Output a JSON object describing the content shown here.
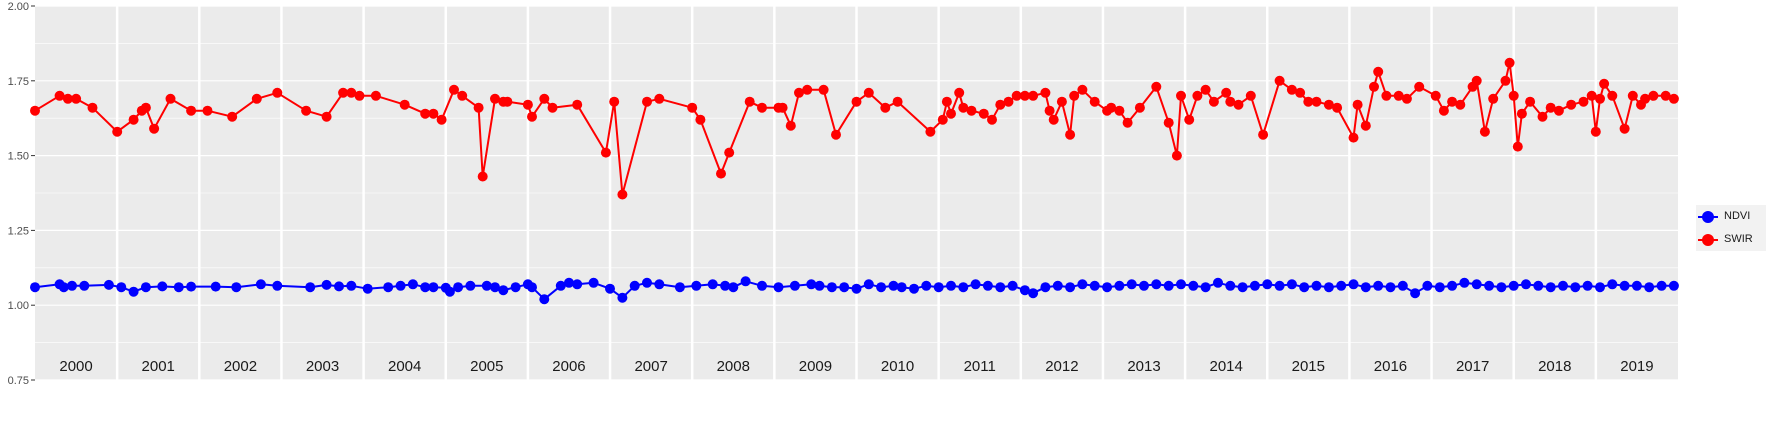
{
  "chart_data": {
    "type": "line",
    "title": "",
    "xlabel": "",
    "ylabel": "",
    "ylim": [
      0.75,
      2.0
    ],
    "y_ticks": [
      "0.75",
      "1.00",
      "1.25",
      "1.50",
      "1.75",
      "2.00"
    ],
    "y_tick_values": [
      0.75,
      1.0,
      1.25,
      1.5,
      1.75,
      2.0
    ],
    "x_range": [
      2000.0,
      2020.0
    ],
    "years": [
      "2000",
      "2001",
      "2002",
      "2003",
      "2004",
      "2005",
      "2006",
      "2007",
      "2008",
      "2009",
      "2010",
      "2011",
      "2012",
      "2013",
      "2014",
      "2015",
      "2016",
      "2017",
      "2018",
      "2019"
    ],
    "grid": true,
    "legend_position": "right",
    "series": [
      {
        "name": "SWIR",
        "color": "#ff0000",
        "points": [
          [
            2000.0,
            1.65
          ],
          [
            2000.3,
            1.7
          ],
          [
            2000.4,
            1.69
          ],
          [
            2000.5,
            1.69
          ],
          [
            2000.7,
            1.66
          ],
          [
            2001.0,
            1.58
          ],
          [
            2001.2,
            1.62
          ],
          [
            2001.3,
            1.65
          ],
          [
            2001.35,
            1.66
          ],
          [
            2001.45,
            1.59
          ],
          [
            2001.65,
            1.69
          ],
          [
            2001.9,
            1.65
          ],
          [
            2002.1,
            1.65
          ],
          [
            2002.4,
            1.63
          ],
          [
            2002.7,
            1.69
          ],
          [
            2002.95,
            1.71
          ],
          [
            2003.3,
            1.65
          ],
          [
            2003.55,
            1.63
          ],
          [
            2003.75,
            1.71
          ],
          [
            2003.85,
            1.71
          ],
          [
            2003.95,
            1.7
          ],
          [
            2004.15,
            1.7
          ],
          [
            2004.5,
            1.67
          ],
          [
            2004.75,
            1.64
          ],
          [
            2004.85,
            1.64
          ],
          [
            2004.95,
            1.62
          ],
          [
            2005.1,
            1.72
          ],
          [
            2005.2,
            1.7
          ],
          [
            2005.4,
            1.66
          ],
          [
            2005.45,
            1.43
          ],
          [
            2005.6,
            1.69
          ],
          [
            2005.7,
            1.68
          ],
          [
            2005.75,
            1.68
          ],
          [
            2006.0,
            1.67
          ],
          [
            2006.05,
            1.63
          ],
          [
            2006.2,
            1.69
          ],
          [
            2006.3,
            1.66
          ],
          [
            2006.6,
            1.67
          ],
          [
            2006.95,
            1.51
          ],
          [
            2007.05,
            1.68
          ],
          [
            2007.15,
            1.37
          ],
          [
            2007.45,
            1.68
          ],
          [
            2007.6,
            1.69
          ],
          [
            2008.0,
            1.66
          ],
          [
            2008.1,
            1.62
          ],
          [
            2008.35,
            1.44
          ],
          [
            2008.45,
            1.51
          ],
          [
            2008.7,
            1.68
          ],
          [
            2008.85,
            1.66
          ],
          [
            2009.05,
            1.66
          ],
          [
            2009.1,
            1.66
          ],
          [
            2009.2,
            1.6
          ],
          [
            2009.3,
            1.71
          ],
          [
            2009.4,
            1.72
          ],
          [
            2009.6,
            1.72
          ],
          [
            2009.75,
            1.57
          ],
          [
            2010.0,
            1.68
          ],
          [
            2010.15,
            1.71
          ],
          [
            2010.35,
            1.66
          ],
          [
            2010.5,
            1.68
          ],
          [
            2010.9,
            1.58
          ],
          [
            2011.05,
            1.62
          ],
          [
            2011.1,
            1.68
          ],
          [
            2011.15,
            1.64
          ],
          [
            2011.25,
            1.71
          ],
          [
            2011.3,
            1.66
          ],
          [
            2011.4,
            1.65
          ],
          [
            2011.55,
            1.64
          ],
          [
            2011.65,
            1.62
          ],
          [
            2011.75,
            1.67
          ],
          [
            2011.85,
            1.68
          ],
          [
            2011.95,
            1.7
          ],
          [
            2012.05,
            1.7
          ],
          [
            2012.15,
            1.7
          ],
          [
            2012.3,
            1.71
          ],
          [
            2012.35,
            1.65
          ],
          [
            2012.4,
            1.62
          ],
          [
            2012.5,
            1.68
          ],
          [
            2012.6,
            1.57
          ],
          [
            2012.65,
            1.7
          ],
          [
            2012.75,
            1.72
          ],
          [
            2012.9,
            1.68
          ],
          [
            2013.05,
            1.65
          ],
          [
            2013.1,
            1.66
          ],
          [
            2013.2,
            1.65
          ],
          [
            2013.3,
            1.61
          ],
          [
            2013.45,
            1.66
          ],
          [
            2013.65,
            1.73
          ],
          [
            2013.8,
            1.61
          ],
          [
            2013.9,
            1.5
          ],
          [
            2013.95,
            1.7
          ],
          [
            2014.05,
            1.62
          ],
          [
            2014.15,
            1.7
          ],
          [
            2014.25,
            1.72
          ],
          [
            2014.35,
            1.68
          ],
          [
            2014.5,
            1.71
          ],
          [
            2014.55,
            1.68
          ],
          [
            2014.65,
            1.67
          ],
          [
            2014.8,
            1.7
          ],
          [
            2014.95,
            1.57
          ],
          [
            2015.15,
            1.75
          ],
          [
            2015.3,
            1.72
          ],
          [
            2015.4,
            1.71
          ],
          [
            2015.5,
            1.68
          ],
          [
            2015.6,
            1.68
          ],
          [
            2015.75,
            1.67
          ],
          [
            2015.85,
            1.66
          ],
          [
            2016.05,
            1.56
          ],
          [
            2016.1,
            1.67
          ],
          [
            2016.2,
            1.6
          ],
          [
            2016.3,
            1.73
          ],
          [
            2016.35,
            1.78
          ],
          [
            2016.45,
            1.7
          ],
          [
            2016.6,
            1.7
          ],
          [
            2016.7,
            1.69
          ],
          [
            2016.85,
            1.73
          ],
          [
            2017.05,
            1.7
          ],
          [
            2017.15,
            1.65
          ],
          [
            2017.25,
            1.68
          ],
          [
            2017.35,
            1.67
          ],
          [
            2017.5,
            1.73
          ],
          [
            2017.55,
            1.75
          ],
          [
            2017.65,
            1.58
          ],
          [
            2017.75,
            1.69
          ],
          [
            2017.9,
            1.75
          ],
          [
            2017.95,
            1.81
          ],
          [
            2018.0,
            1.7
          ],
          [
            2018.05,
            1.53
          ],
          [
            2018.1,
            1.64
          ],
          [
            2018.2,
            1.68
          ],
          [
            2018.35,
            1.63
          ],
          [
            2018.45,
            1.66
          ],
          [
            2018.55,
            1.65
          ],
          [
            2018.7,
            1.67
          ],
          [
            2018.85,
            1.68
          ],
          [
            2018.95,
            1.7
          ],
          [
            2019.0,
            1.58
          ],
          [
            2019.05,
            1.69
          ],
          [
            2019.1,
            1.74
          ],
          [
            2019.2,
            1.7
          ],
          [
            2019.35,
            1.59
          ],
          [
            2019.45,
            1.7
          ],
          [
            2019.55,
            1.67
          ],
          [
            2019.6,
            1.69
          ],
          [
            2019.7,
            1.7
          ],
          [
            2019.85,
            1.7
          ],
          [
            2019.95,
            1.69
          ]
        ]
      },
      {
        "name": "NDVI",
        "color": "#0000ff",
        "points": [
          [
            2000.0,
            1.06
          ],
          [
            2000.3,
            1.07
          ],
          [
            2000.35,
            1.06
          ],
          [
            2000.45,
            1.065
          ],
          [
            2000.6,
            1.065
          ],
          [
            2000.9,
            1.068
          ],
          [
            2001.05,
            1.06
          ],
          [
            2001.2,
            1.045
          ],
          [
            2001.35,
            1.06
          ],
          [
            2001.55,
            1.063
          ],
          [
            2001.75,
            1.06
          ],
          [
            2001.9,
            1.062
          ],
          [
            2002.2,
            1.062
          ],
          [
            2002.45,
            1.06
          ],
          [
            2002.75,
            1.07
          ],
          [
            2002.95,
            1.065
          ],
          [
            2003.35,
            1.06
          ],
          [
            2003.55,
            1.068
          ],
          [
            2003.7,
            1.063
          ],
          [
            2003.85,
            1.065
          ],
          [
            2004.05,
            1.055
          ],
          [
            2004.3,
            1.06
          ],
          [
            2004.45,
            1.065
          ],
          [
            2004.6,
            1.07
          ],
          [
            2004.75,
            1.06
          ],
          [
            2004.85,
            1.06
          ],
          [
            2005.0,
            1.058
          ],
          [
            2005.05,
            1.045
          ],
          [
            2005.15,
            1.06
          ],
          [
            2005.3,
            1.065
          ],
          [
            2005.5,
            1.065
          ],
          [
            2005.6,
            1.06
          ],
          [
            2005.7,
            1.05
          ],
          [
            2005.85,
            1.06
          ],
          [
            2006.0,
            1.07
          ],
          [
            2006.05,
            1.06
          ],
          [
            2006.2,
            1.02
          ],
          [
            2006.4,
            1.065
          ],
          [
            2006.5,
            1.075
          ],
          [
            2006.6,
            1.07
          ],
          [
            2006.8,
            1.075
          ],
          [
            2007.0,
            1.055
          ],
          [
            2007.15,
            1.025
          ],
          [
            2007.3,
            1.065
          ],
          [
            2007.45,
            1.075
          ],
          [
            2007.6,
            1.07
          ],
          [
            2007.85,
            1.06
          ],
          [
            2008.05,
            1.065
          ],
          [
            2008.25,
            1.07
          ],
          [
            2008.4,
            1.065
          ],
          [
            2008.5,
            1.06
          ],
          [
            2008.65,
            1.08
          ],
          [
            2008.85,
            1.065
          ],
          [
            2009.05,
            1.06
          ],
          [
            2009.25,
            1.065
          ],
          [
            2009.45,
            1.07
          ],
          [
            2009.55,
            1.065
          ],
          [
            2009.7,
            1.06
          ],
          [
            2009.85,
            1.06
          ],
          [
            2010.0,
            1.055
          ],
          [
            2010.15,
            1.07
          ],
          [
            2010.3,
            1.06
          ],
          [
            2010.45,
            1.065
          ],
          [
            2010.55,
            1.06
          ],
          [
            2010.7,
            1.055
          ],
          [
            2010.85,
            1.065
          ],
          [
            2011.0,
            1.06
          ],
          [
            2011.15,
            1.065
          ],
          [
            2011.3,
            1.06
          ],
          [
            2011.45,
            1.07
          ],
          [
            2011.6,
            1.065
          ],
          [
            2011.75,
            1.06
          ],
          [
            2011.9,
            1.065
          ],
          [
            2012.05,
            1.05
          ],
          [
            2012.15,
            1.04
          ],
          [
            2012.3,
            1.06
          ],
          [
            2012.45,
            1.065
          ],
          [
            2012.6,
            1.06
          ],
          [
            2012.75,
            1.07
          ],
          [
            2012.9,
            1.065
          ],
          [
            2013.05,
            1.06
          ],
          [
            2013.2,
            1.065
          ],
          [
            2013.35,
            1.07
          ],
          [
            2013.5,
            1.065
          ],
          [
            2013.65,
            1.07
          ],
          [
            2013.8,
            1.065
          ],
          [
            2013.95,
            1.07
          ],
          [
            2014.1,
            1.065
          ],
          [
            2014.25,
            1.06
          ],
          [
            2014.4,
            1.075
          ],
          [
            2014.55,
            1.065
          ],
          [
            2014.7,
            1.06
          ],
          [
            2014.85,
            1.065
          ],
          [
            2015.0,
            1.07
          ],
          [
            2015.15,
            1.065
          ],
          [
            2015.3,
            1.07
          ],
          [
            2015.45,
            1.06
          ],
          [
            2015.6,
            1.065
          ],
          [
            2015.75,
            1.06
          ],
          [
            2015.9,
            1.065
          ],
          [
            2016.05,
            1.07
          ],
          [
            2016.2,
            1.06
          ],
          [
            2016.35,
            1.065
          ],
          [
            2016.5,
            1.06
          ],
          [
            2016.65,
            1.065
          ],
          [
            2016.8,
            1.04
          ],
          [
            2016.95,
            1.065
          ],
          [
            2017.1,
            1.06
          ],
          [
            2017.25,
            1.065
          ],
          [
            2017.4,
            1.075
          ],
          [
            2017.55,
            1.07
          ],
          [
            2017.7,
            1.065
          ],
          [
            2017.85,
            1.06
          ],
          [
            2018.0,
            1.065
          ],
          [
            2018.15,
            1.07
          ],
          [
            2018.3,
            1.065
          ],
          [
            2018.45,
            1.06
          ],
          [
            2018.6,
            1.065
          ],
          [
            2018.75,
            1.06
          ],
          [
            2018.9,
            1.065
          ],
          [
            2019.05,
            1.06
          ],
          [
            2019.2,
            1.07
          ],
          [
            2019.35,
            1.065
          ],
          [
            2019.5,
            1.065
          ],
          [
            2019.65,
            1.06
          ],
          [
            2019.8,
            1.065
          ],
          [
            2019.95,
            1.065
          ]
        ]
      }
    ],
    "legend": [
      "NDVI",
      "SWIR"
    ]
  }
}
